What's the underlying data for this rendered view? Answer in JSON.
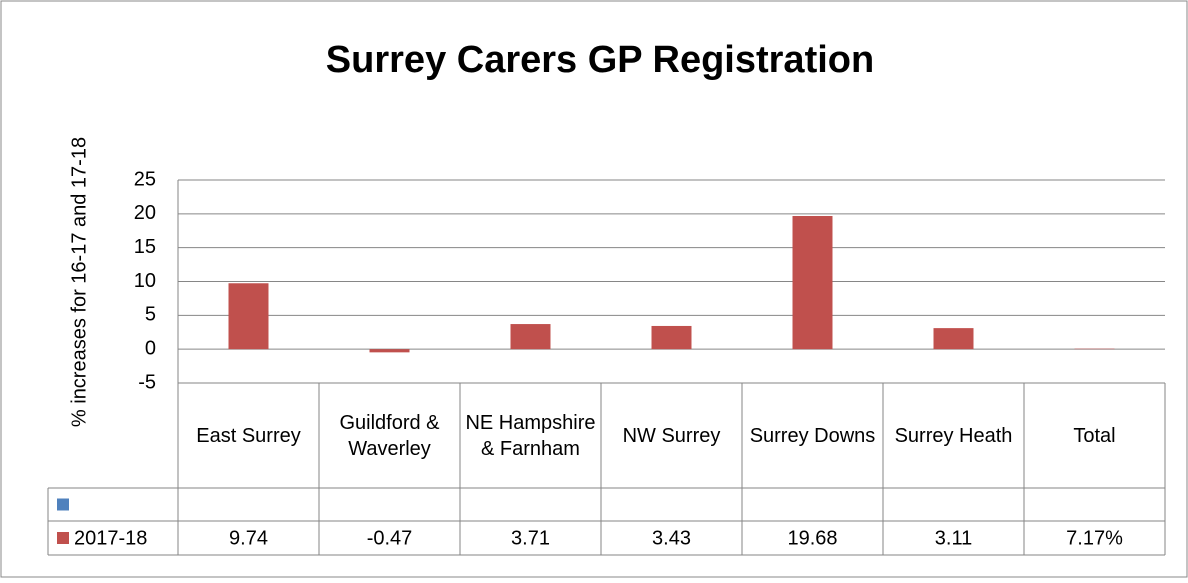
{
  "chart_data": {
    "type": "bar",
    "title": "Surrey Carers GP Registration",
    "y_label": "% increases for 16-17 and 17-18",
    "categories": [
      "East Surrey",
      "Guildford & Waverley",
      "NE Hampshire & Farnham",
      "NW Surrey",
      "Surrey Downs",
      "Surrey Heath",
      "Total"
    ],
    "series": [
      {
        "color": "#4f81bd",
        "values": [
          null,
          null,
          null,
          null,
          null,
          null,
          null
        ]
      },
      {
        "name": "2017-18",
        "color": "#c0504d",
        "values": [
          9.74,
          -0.47,
          3.71,
          3.43,
          19.68,
          3.11,
          0.0717
        ],
        "value_labels": [
          "9.74",
          "-0.47",
          "3.71",
          "3.43",
          "19.68",
          "3.11",
          "7.17%"
        ]
      }
    ],
    "ylim": [
      -5,
      25
    ],
    "yticks": [
      -5,
      0,
      5,
      10,
      15,
      20,
      25
    ],
    "grid": true,
    "data_table": true
  }
}
